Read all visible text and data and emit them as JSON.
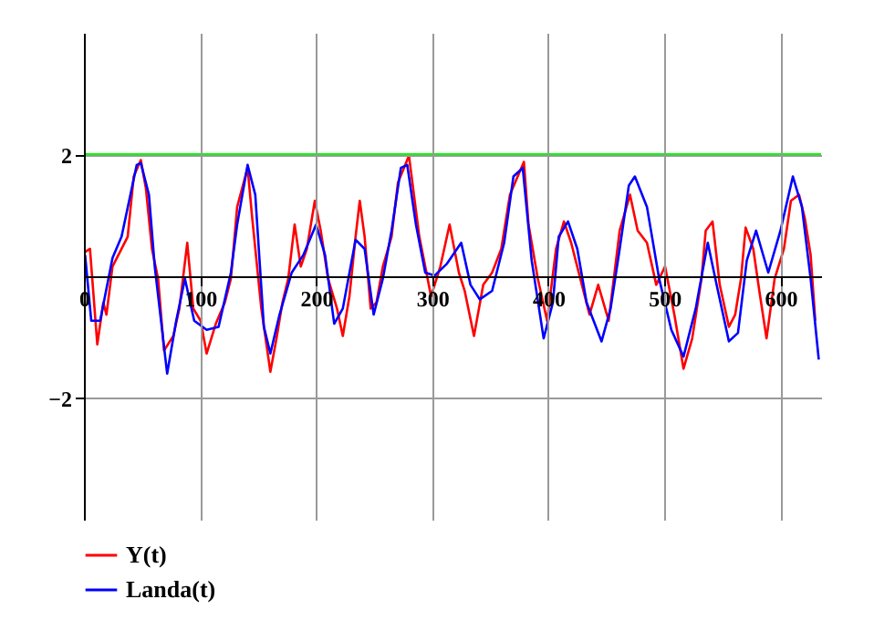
{
  "chart_data": {
    "type": "line",
    "xlim": [
      0,
      635
    ],
    "ylim": [
      -4,
      4
    ],
    "xticks": [
      0,
      100,
      200,
      300,
      400,
      500,
      600
    ],
    "yticks": [
      -2,
      2
    ],
    "grid": true,
    "legend": "bottom left",
    "line_style": "solid",
    "ref_lines": [
      {
        "axis": "y",
        "value": 2,
        "color": "#00ff00"
      }
    ],
    "series": [
      {
        "name": "Y(t)",
        "color": "#ff0000",
        "x": [
          1,
          5.2,
          11.5,
          16.7,
          19.4,
          24.6,
          32.4,
          37.7,
          42.9,
          49,
          53.4,
          58.6,
          63.9,
          69,
          77,
          82.2,
          89,
          94.2,
          100.5,
          105.7,
          113.6,
          121.4,
          126.6,
          132,
          141,
          145,
          152.8,
          160.6,
          165.9,
          171,
          176,
          181.5,
          186.8,
          192,
          198.9,
          204,
          210.3,
          218,
          223,
          228.7,
          234,
          237.6,
          241.8,
          247,
          252,
          257.5,
          265,
          270.5,
          280,
          283.6,
          288.9,
          294,
          299,
          307,
          315,
          323,
          328,
          336,
          344,
          351.6,
          359.5,
          367,
          379,
          383,
          391,
          399,
          406.7,
          413.5,
          419.7,
          427.6,
          435.5,
          443,
          452,
          461.5,
          470.4,
          477,
          485,
          493,
          500.6,
          508.6,
          516.5,
          524,
          532,
          535.6,
          541.5,
          547.7,
          555.6,
          561,
          566,
          570,
          576.6,
          581.8,
          588,
          595,
          603,
          609,
          616,
          621,
          626,
          630
        ],
        "values": [
          0.4,
          0.45,
          -1.12,
          -0.43,
          -0.63,
          0.16,
          0.45,
          0.65,
          1.64,
          1.91,
          1.44,
          0.45,
          -0.04,
          -1.22,
          -0.98,
          -0.53,
          0.55,
          -0.53,
          -0.73,
          -1.27,
          -0.78,
          -0.43,
          -0.04,
          1.14,
          1.78,
          0.95,
          -0.53,
          -1.57,
          -1.02,
          -0.43,
          -0.04,
          0.85,
          0.16,
          0.45,
          1.24,
          0.75,
          -0.04,
          -0.53,
          -0.98,
          -0.33,
          0.65,
          1.24,
          0.65,
          -0.53,
          -0.43,
          0.16,
          0.65,
          1.54,
          1.98,
          1.44,
          0.65,
          0.16,
          -0.33,
          0.16,
          0.85,
          0.06,
          -0.24,
          -0.98,
          -0.14,
          0.06,
          0.45,
          1.34,
          1.88,
          0.85,
          -0.04,
          -0.73,
          0.45,
          0.9,
          0.55,
          -0.04,
          -0.63,
          -0.14,
          -0.73,
          0.75,
          1.34,
          0.75,
          0.55,
          -0.14,
          0.16,
          -0.63,
          -1.52,
          -1.02,
          -0.04,
          0.75,
          0.9,
          -0.14,
          -0.83,
          -0.63,
          -0.04,
          0.8,
          0.45,
          -0.24,
          -1.02,
          -0.04,
          0.45,
          1.24,
          1.34,
          0.95,
          0.35,
          -0.73
        ]
      },
      {
        "name": "Landa(t)",
        "color": "#0000ff",
        "x": [
          1,
          6.3,
          14,
          24.6,
          32.4,
          45.5,
          49,
          56,
          61,
          71.7,
          79.5,
          87,
          95,
          105.7,
          116,
          126.6,
          132,
          141,
          147.6,
          155,
          160.6,
          168.5,
          179,
          189,
          200,
          207.7,
          215.6,
          223,
          234,
          241.8,
          249.6,
          257.5,
          265,
          273,
          278.5,
          286,
          294,
          302,
          312.4,
          325,
          333,
          341,
          351.6,
          362,
          370,
          378,
          385.7,
          396,
          404,
          409,
          417,
          425,
          433,
          445.9,
          453.7,
          461.5,
          469.4,
          474.6,
          485,
          495.5,
          506,
          516.5,
          527,
          537.4,
          545,
          555.6,
          563.4,
          571,
          579,
          589.5,
          600,
          610.7,
          618.5,
          626,
          633
        ],
        "values": [
          0.35,
          -0.73,
          -0.73,
          0.3,
          0.65,
          1.83,
          1.86,
          1.34,
          0.16,
          -1.6,
          -0.73,
          -0.04,
          -0.73,
          -0.88,
          -0.83,
          0.06,
          0.85,
          1.83,
          1.34,
          -0.83,
          -1.27,
          -0.63,
          0.06,
          0.35,
          0.85,
          0.35,
          -0.78,
          -0.53,
          0.6,
          0.45,
          -0.63,
          -0.04,
          0.75,
          1.78,
          1.83,
          0.85,
          0.06,
          0.01,
          0.2,
          0.55,
          -0.14,
          -0.38,
          -0.24,
          0.55,
          1.64,
          1.78,
          0.26,
          -1.02,
          -0.43,
          0.65,
          0.9,
          0.45,
          -0.43,
          -1.07,
          -0.53,
          0.45,
          1.49,
          1.64,
          1.14,
          -0.04,
          -0.88,
          -1.32,
          -0.53,
          0.55,
          -0.14,
          -1.07,
          -0.93,
          0.26,
          0.75,
          0.06,
          0.75,
          1.64,
          1.14,
          -0.04,
          -1.37
        ]
      }
    ]
  }
}
